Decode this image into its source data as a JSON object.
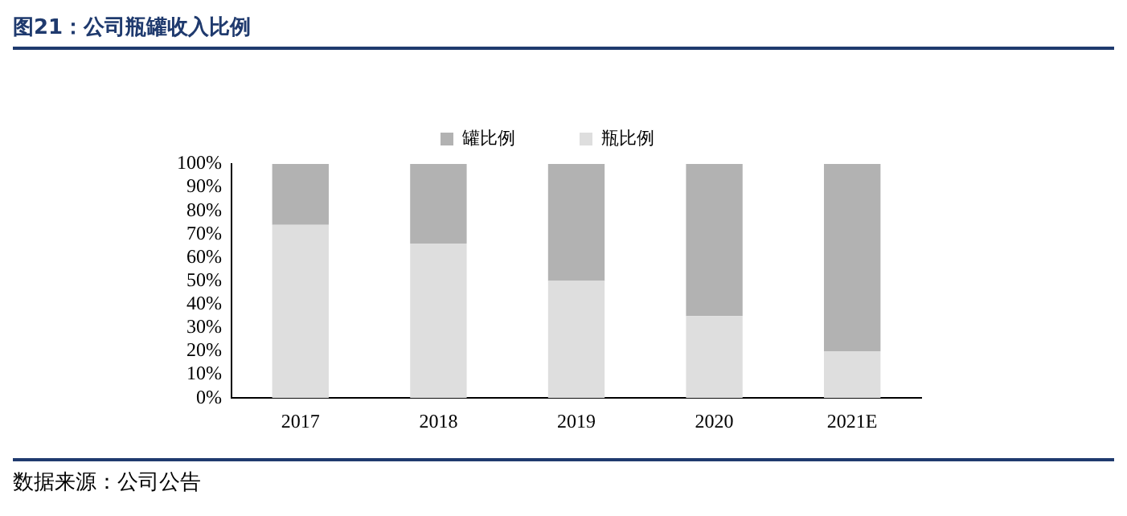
{
  "chart_data": {
    "type": "bar",
    "title": "图21：公司瓶罐收入比例",
    "categories": [
      "2017",
      "2018",
      "2019",
      "2020",
      "2021E"
    ],
    "series": [
      {
        "name": "瓶比例",
        "color": "#dedede",
        "values": [
          74,
          66,
          50,
          35,
          20
        ]
      },
      {
        "name": "罐比例",
        "color": "#b2b2b2",
        "values": [
          26,
          34,
          50,
          65,
          80
        ]
      }
    ],
    "stacked": true,
    "ylim": [
      0,
      100
    ],
    "yticks": [
      {
        "value": 0,
        "label": "0%"
      },
      {
        "value": 10,
        "label": "10%"
      },
      {
        "value": 20,
        "label": "20%"
      },
      {
        "value": 30,
        "label": "30%"
      },
      {
        "value": 40,
        "label": "40%"
      },
      {
        "value": 50,
        "label": "50%"
      },
      {
        "value": 60,
        "label": "60%"
      },
      {
        "value": 70,
        "label": "70%"
      },
      {
        "value": 80,
        "label": "80%"
      },
      {
        "value": 90,
        "label": "90%"
      },
      {
        "value": 100,
        "label": "100%"
      }
    ],
    "grid": false,
    "legend": "top",
    "annotations": [
      "数据来源：公司公告"
    ]
  }
}
